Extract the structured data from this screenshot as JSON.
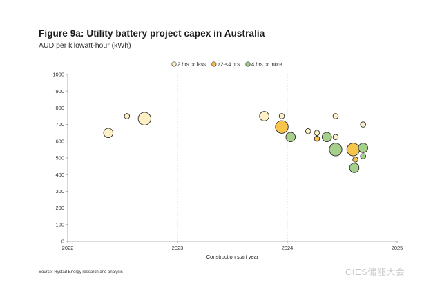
{
  "header": {
    "title": "Figure 9a: Utility battery project capex in Australia",
    "subtitle": "AUD per kilowatt-hour (kWh)"
  },
  "footer": {
    "source": "Source: Rystad Energy research and analysis",
    "watermark": "CIES储能大会"
  },
  "chart_data": {
    "type": "scatter",
    "xlabel": "Construction start year",
    "ylabel": "",
    "xlim": [
      2022,
      2025
    ],
    "ylim": [
      0,
      1000
    ],
    "x_ticks": [
      2022,
      2023,
      2024,
      2025
    ],
    "y_ticks": [
      0,
      100,
      200,
      300,
      400,
      500,
      600,
      700,
      800,
      900,
      1000
    ],
    "grid": "vertical at year ticks (dashed)",
    "legend_position": "top-center",
    "series": [
      {
        "name": "2 hrs or less",
        "color": "#fdf0c6",
        "points": [
          {
            "x": 2022.37,
            "y": 650,
            "size": "medium"
          },
          {
            "x": 2022.54,
            "y": 750,
            "size": "small"
          },
          {
            "x": 2022.7,
            "y": 735,
            "size": "large"
          },
          {
            "x": 2023.79,
            "y": 750,
            "size": "medium"
          },
          {
            "x": 2023.95,
            "y": 750,
            "size": "small"
          },
          {
            "x": 2024.19,
            "y": 660,
            "size": "small"
          },
          {
            "x": 2024.27,
            "y": 650,
            "size": "small"
          },
          {
            "x": 2024.44,
            "y": 750,
            "size": "small"
          },
          {
            "x": 2024.44,
            "y": 625,
            "size": "small"
          },
          {
            "x": 2024.69,
            "y": 700,
            "size": "small"
          }
        ]
      },
      {
        "name": ">2-<4 hrs",
        "color": "#f7c54c",
        "points": [
          {
            "x": 2023.95,
            "y": 685,
            "size": "large"
          },
          {
            "x": 2024.27,
            "y": 615,
            "size": "small"
          },
          {
            "x": 2024.6,
            "y": 550,
            "size": "large"
          },
          {
            "x": 2024.62,
            "y": 490,
            "size": "small"
          }
        ]
      },
      {
        "name": "4 hrs or more",
        "color": "#a6cf8a",
        "points": [
          {
            "x": 2024.03,
            "y": 625,
            "size": "medium"
          },
          {
            "x": 2024.36,
            "y": 625,
            "size": "medium"
          },
          {
            "x": 2024.44,
            "y": 550,
            "size": "large"
          },
          {
            "x": 2024.69,
            "y": 560,
            "size": "medium"
          },
          {
            "x": 2024.69,
            "y": 510,
            "size": "small"
          },
          {
            "x": 2024.61,
            "y": 440,
            "size": "medium"
          }
        ]
      }
    ]
  }
}
